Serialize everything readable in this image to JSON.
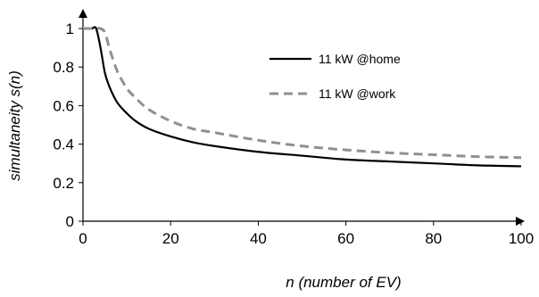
{
  "chart_data": {
    "type": "line",
    "xlabel": "n (number of EV)",
    "ylabel": "simultaneity s(n)",
    "xlim": [
      0,
      100
    ],
    "ylim": [
      0,
      1
    ],
    "xticks": [
      "0",
      "20",
      "40",
      "60",
      "80",
      "100"
    ],
    "yticks": [
      "0",
      "0.2",
      "0.4",
      "0.6",
      "0.8",
      "1"
    ],
    "grid": false,
    "legend_position": "top-right",
    "series": [
      {
        "name": "11 kW @home",
        "color": "#000000",
        "dash": "solid",
        "x": [
          0,
          1,
          2,
          3,
          4,
          5,
          6,
          7,
          8,
          10,
          12,
          15,
          20,
          25,
          30,
          40,
          50,
          60,
          70,
          80,
          90,
          100
        ],
        "y": [
          1,
          1,
          1,
          1,
          0.9,
          0.77,
          0.7,
          0.65,
          0.61,
          0.56,
          0.52,
          0.48,
          0.44,
          0.41,
          0.39,
          0.36,
          0.34,
          0.32,
          0.31,
          0.3,
          0.29,
          0.285
        ]
      },
      {
        "name": "11 kW @work",
        "color": "#909090",
        "dash": "dashed",
        "x": [
          0,
          1,
          2,
          3,
          4,
          5,
          6,
          7,
          8,
          10,
          12,
          15,
          20,
          25,
          30,
          40,
          50,
          60,
          70,
          80,
          90,
          100
        ],
        "y": [
          1,
          1,
          1,
          1,
          1,
          0.98,
          0.9,
          0.83,
          0.77,
          0.69,
          0.64,
          0.58,
          0.52,
          0.48,
          0.46,
          0.42,
          0.39,
          0.37,
          0.355,
          0.345,
          0.335,
          0.33
        ]
      }
    ]
  }
}
